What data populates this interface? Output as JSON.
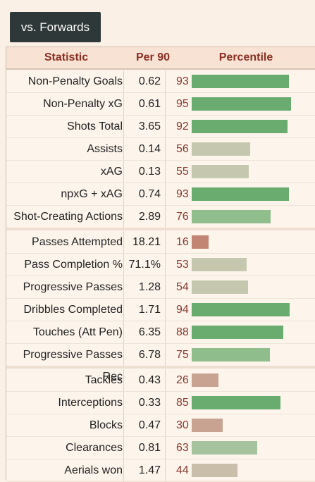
{
  "tab_label": "vs. Forwards",
  "headers": {
    "statistic": "Statistic",
    "per90": "Per 90",
    "percentile": "Percentile"
  },
  "colors": {
    "high": "#6aac6f",
    "mid_high": "#8fbd8b",
    "mid": "#a6c39f",
    "neutral": "#c5c8ae",
    "low_neutral": "#c9bea9",
    "low": "#c9a391",
    "very_low": "#c38573"
  },
  "rows": [
    {
      "stat": "Non-Penalty Goals",
      "per90": "0.62",
      "pct": "93",
      "pct_value": 93,
      "color": "#6aac6f"
    },
    {
      "stat": "Non-Penalty xG",
      "per90": "0.61",
      "pct": "95",
      "pct_value": 95,
      "color": "#6aac6f"
    },
    {
      "stat": "Shots Total",
      "per90": "3.65",
      "pct": "92",
      "pct_value": 92,
      "color": "#6aac6f"
    },
    {
      "stat": "Assists",
      "per90": "0.14",
      "pct": "56",
      "pct_value": 56,
      "color": "#c5c8ae"
    },
    {
      "stat": "xAG",
      "per90": "0.13",
      "pct": "55",
      "pct_value": 55,
      "color": "#c5c8ae"
    },
    {
      "stat": "npxG + xAG",
      "per90": "0.74",
      "pct": "93",
      "pct_value": 93,
      "color": "#6aac6f"
    },
    {
      "stat": "Shot-Creating Actions",
      "per90": "2.89",
      "pct": "76",
      "pct_value": 76,
      "color": "#8fbd8b"
    },
    {
      "stat": "Passes Attempted",
      "per90": "18.21",
      "pct": "16",
      "pct_value": 16,
      "color": "#c38573"
    },
    {
      "stat": "Pass Completion %",
      "per90": "71.1%",
      "pct": "53",
      "pct_value": 53,
      "color": "#c5c8ae"
    },
    {
      "stat": "Progressive Passes",
      "per90": "1.28",
      "pct": "54",
      "pct_value": 54,
      "color": "#c5c8ae"
    },
    {
      "stat": "Dribbles Completed",
      "per90": "1.71",
      "pct": "94",
      "pct_value": 94,
      "color": "#6aac6f"
    },
    {
      "stat": "Touches (Att Pen)",
      "per90": "6.35",
      "pct": "88",
      "pct_value": 88,
      "color": "#6aac6f"
    },
    {
      "stat": "Progressive Passes Rec",
      "per90": "6.78",
      "pct": "75",
      "pct_value": 75,
      "color": "#8fbd8b"
    },
    {
      "stat": "Tackles",
      "per90": "0.43",
      "pct": "26",
      "pct_value": 26,
      "color": "#c9a391"
    },
    {
      "stat": "Interceptions",
      "per90": "0.33",
      "pct": "85",
      "pct_value": 85,
      "color": "#6aac6f"
    },
    {
      "stat": "Blocks",
      "per90": "0.47",
      "pct": "30",
      "pct_value": 30,
      "color": "#c9a391"
    },
    {
      "stat": "Clearances",
      "per90": "0.81",
      "pct": "63",
      "pct_value": 63,
      "color": "#a6c39f"
    },
    {
      "stat": "Aerials won",
      "per90": "1.47",
      "pct": "44",
      "pct_value": 44,
      "color": "#c9bea9"
    }
  ]
}
